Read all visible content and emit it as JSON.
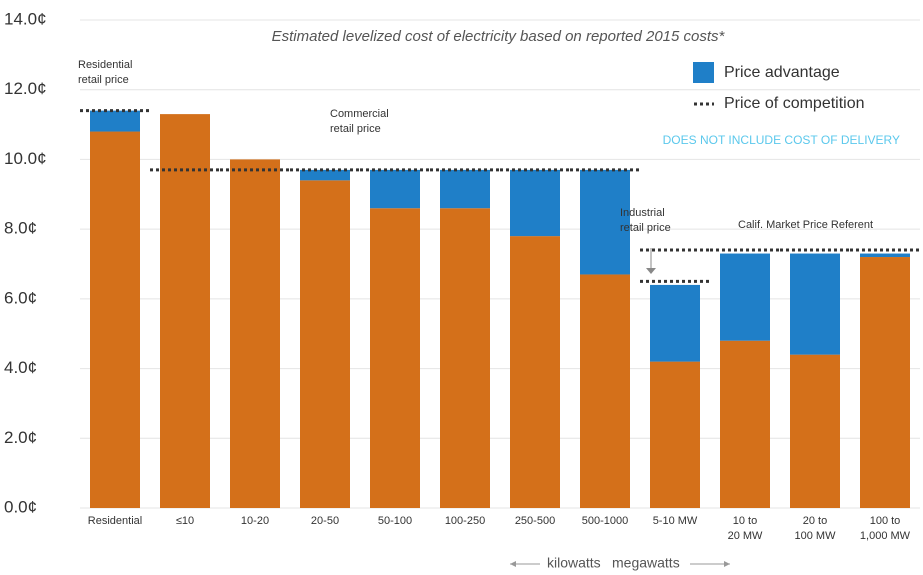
{
  "chart_data": {
    "type": "bar",
    "stacked": true,
    "title": "Estimated levelized cost of electricity based on reported 2015 costs*",
    "note": "DOES NOT INCLUDE COST OF DELIVERY",
    "x_note_left": "kilowatts",
    "x_note_right": "megawatts",
    "categories": [
      "Residential",
      "≤10",
      "10-20",
      "20-50",
      "50-100",
      "100-250",
      "250-500",
      "500-1000",
      "5-10 MW",
      "10 to\n20 MW",
      "20 to\n100 MW",
      "100 to\n1,000 MW"
    ],
    "series": [
      {
        "color": "#d4701a",
        "values": [
          10.8,
          11.3,
          10.0,
          9.4,
          8.6,
          8.6,
          7.8,
          6.7,
          4.2,
          4.8,
          4.4,
          7.2
        ]
      },
      {
        "name": "Price advantage",
        "color": "#1f7fc8",
        "values": [
          0.6,
          0,
          0,
          0.3,
          1.1,
          1.1,
          1.9,
          3.0,
          2.2,
          2.5,
          2.9,
          0.1
        ]
      }
    ],
    "competition": {
      "name": "Price of competition",
      "color": "#333333",
      "lines": [
        {
          "label": "Residential\nretail price",
          "values": [
            11.4,
            null,
            null,
            null,
            null,
            null,
            null,
            null,
            null,
            null,
            null,
            null
          ]
        },
        {
          "label": "Commercial\nretail price",
          "values": [
            null,
            9.7,
            9.7,
            9.7,
            9.7,
            9.7,
            9.7,
            9.7,
            null,
            null,
            null,
            null
          ]
        },
        {
          "label": "Industrial\nretail price",
          "values": [
            null,
            null,
            null,
            null,
            null,
            null,
            null,
            null,
            6.5,
            null,
            null,
            null
          ]
        },
        {
          "label": "Calif. Market Price Referent",
          "values": [
            null,
            null,
            null,
            null,
            null,
            null,
            null,
            null,
            7.4,
            7.4,
            7.4,
            7.4
          ]
        }
      ]
    },
    "ylim": [
      0,
      14
    ],
    "yticks": [
      {
        "value": 0,
        "label": "0.0¢"
      },
      {
        "value": 2,
        "label": "2.0¢"
      },
      {
        "value": 4,
        "label": "4.0¢"
      },
      {
        "value": 6,
        "label": "6.0¢"
      },
      {
        "value": 8,
        "label": "8.0¢"
      },
      {
        "value": 10,
        "label": "10.0¢"
      },
      {
        "value": 12,
        "label": "12.0¢"
      },
      {
        "value": 14,
        "label": "14.0¢"
      }
    ],
    "grid": true
  }
}
